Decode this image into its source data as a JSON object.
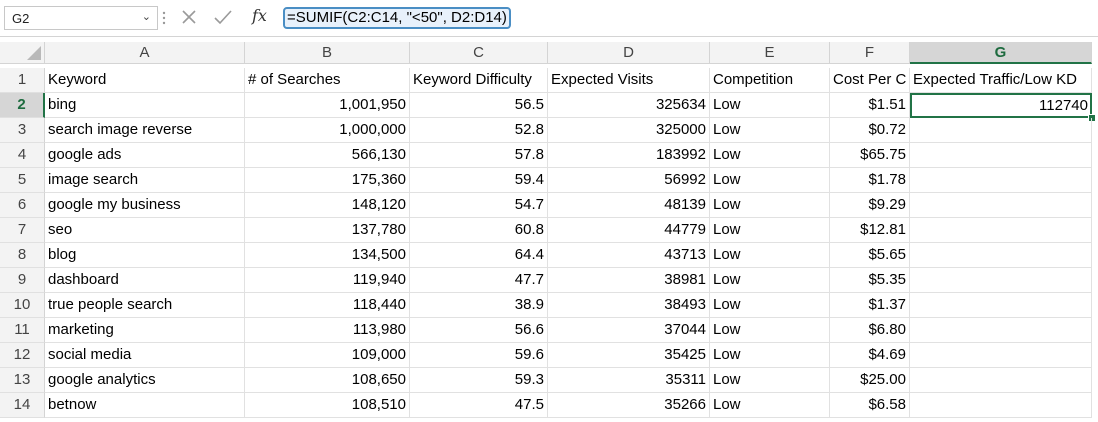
{
  "name_box": {
    "value": "G2"
  },
  "formula_bar": {
    "fx_label": "fx",
    "formula": "=SUMIF(C2:C14, \"<50\", D2:D14)"
  },
  "columns": [
    "A",
    "B",
    "C",
    "D",
    "E",
    "F",
    "G"
  ],
  "selected_column": "G",
  "selected_row": "2",
  "headers": [
    "Keyword",
    "# of Searches",
    "Keyword Difficulty",
    "Expected Visits",
    "Competition",
    "Cost Per C",
    "Expected Traffic/Low KD"
  ],
  "rows": [
    {
      "row": "2",
      "keyword": "bing",
      "searches": "1,001,950",
      "kd": "56.5",
      "visits": "325634",
      "competition": "Low",
      "cpc": "$1.51",
      "traffic": "112740"
    },
    {
      "row": "3",
      "keyword": "search image reverse",
      "searches": "1,000,000",
      "kd": "52.8",
      "visits": "325000",
      "competition": "Low",
      "cpc": "$0.72",
      "traffic": ""
    },
    {
      "row": "4",
      "keyword": "google ads",
      "searches": "566,130",
      "kd": "57.8",
      "visits": "183992",
      "competition": "Low",
      "cpc": "$65.75",
      "traffic": ""
    },
    {
      "row": "5",
      "keyword": "image search",
      "searches": "175,360",
      "kd": "59.4",
      "visits": "56992",
      "competition": "Low",
      "cpc": "$1.78",
      "traffic": ""
    },
    {
      "row": "6",
      "keyword": "google my business",
      "searches": "148,120",
      "kd": "54.7",
      "visits": "48139",
      "competition": "Low",
      "cpc": "$9.29",
      "traffic": ""
    },
    {
      "row": "7",
      "keyword": "seo",
      "searches": "137,780",
      "kd": "60.8",
      "visits": "44779",
      "competition": "Low",
      "cpc": "$12.81",
      "traffic": ""
    },
    {
      "row": "8",
      "keyword": "blog",
      "searches": "134,500",
      "kd": "64.4",
      "visits": "43713",
      "competition": "Low",
      "cpc": "$5.65",
      "traffic": ""
    },
    {
      "row": "9",
      "keyword": "dashboard",
      "searches": "119,940",
      "kd": "47.7",
      "visits": "38981",
      "competition": "Low",
      "cpc": "$5.35",
      "traffic": ""
    },
    {
      "row": "10",
      "keyword": "true people search",
      "searches": "118,440",
      "kd": "38.9",
      "visits": "38493",
      "competition": "Low",
      "cpc": "$1.37",
      "traffic": ""
    },
    {
      "row": "11",
      "keyword": "marketing",
      "searches": "113,980",
      "kd": "56.6",
      "visits": "37044",
      "competition": "Low",
      "cpc": "$6.80",
      "traffic": ""
    },
    {
      "row": "12",
      "keyword": "social media",
      "searches": "109,000",
      "kd": "59.6",
      "visits": "35425",
      "competition": "Low",
      "cpc": "$4.69",
      "traffic": ""
    },
    {
      "row": "13",
      "keyword": "google analytics",
      "searches": "108,650",
      "kd": "59.3",
      "visits": "35311",
      "competition": "Low",
      "cpc": "$25.00",
      "traffic": ""
    },
    {
      "row": "14",
      "keyword": "betnow",
      "searches": "108,510",
      "kd": "47.5",
      "visits": "35266",
      "competition": "Low",
      "cpc": "$6.58",
      "traffic": ""
    }
  ],
  "colors": {
    "accent": "#217346",
    "formula_highlight": "#4a8ec4",
    "header_bg": "#f3f3f3",
    "selected_header_bg": "#d6d6d6"
  },
  "icons": {
    "cancel": "x-icon",
    "enter": "check-icon",
    "name_box_dropdown": "chevron-down-icon"
  }
}
